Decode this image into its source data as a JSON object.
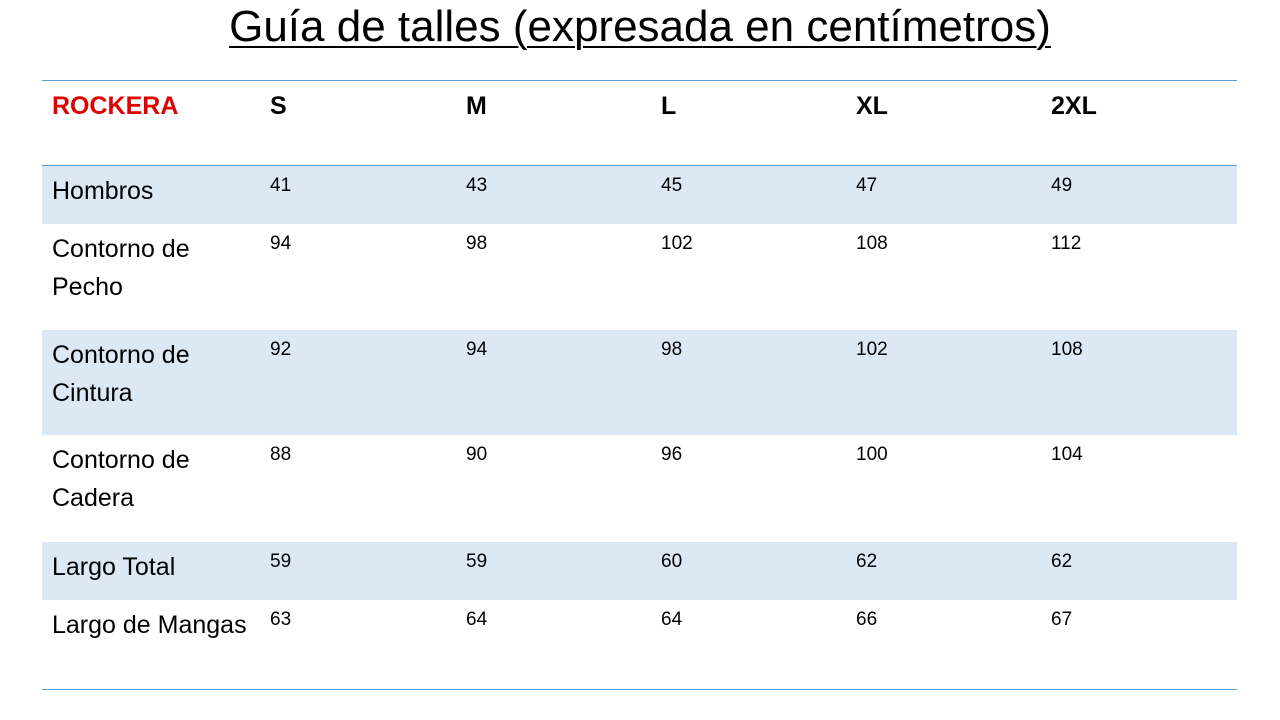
{
  "title": "Guía de talles (expresada en centímetros)",
  "table": {
    "header": [
      "ROCKERA",
      "S",
      "M",
      "L",
      "XL",
      "2XL"
    ],
    "rows": [
      [
        "Hombros",
        41,
        43,
        45,
        47,
        49
      ],
      [
        "Contorno de Pecho",
        94,
        98,
        102,
        108,
        112
      ],
      [
        "Contorno de Cintura",
        92,
        94,
        98,
        102,
        108
      ],
      [
        "Contorno de Cadera",
        88,
        90,
        96,
        100,
        104
      ],
      [
        "Largo Total",
        59,
        59,
        60,
        62,
        62
      ],
      [
        "Largo de Mangas",
        63,
        64,
        64,
        66,
        67
      ]
    ]
  }
}
